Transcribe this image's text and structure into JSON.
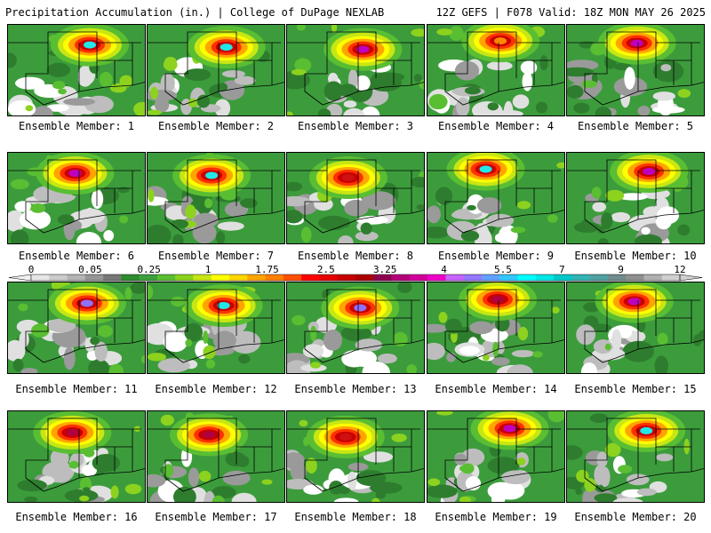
{
  "header": {
    "title_left": "Precipitation Accumulation (in.) | College of DuPage NEXLAB",
    "title_right": "12Z GEFS | F078 Valid: 18Z MON MAY 26 2025"
  },
  "panels": [
    {
      "label": "Ensemble Member: 1",
      "max_color": "#20e8e8"
    },
    {
      "label": "Ensemble Member: 2",
      "max_color": "#20e8e8"
    },
    {
      "label": "Ensemble Member: 3",
      "max_color": "#c000c0"
    },
    {
      "label": "Ensemble Member: 4",
      "max_color": "#ff8800"
    },
    {
      "label": "Ensemble Member: 5",
      "max_color": "#c000c0"
    },
    {
      "label": "Ensemble Member: 6",
      "max_color": "#c000c0"
    },
    {
      "label": "Ensemble Member: 7",
      "max_color": "#20e8e8"
    },
    {
      "label": "Ensemble Member: 8",
      "max_color": "#d01010"
    },
    {
      "label": "Ensemble Member: 9",
      "max_color": "#20e8e8"
    },
    {
      "label": "Ensemble Member: 10",
      "max_color": "#c000c0"
    },
    {
      "label": "Ensemble Member: 11",
      "max_color": "#9070ff"
    },
    {
      "label": "Ensemble Member: 12",
      "max_color": "#20e8e8"
    },
    {
      "label": "Ensemble Member: 13",
      "max_color": "#9070ff"
    },
    {
      "label": "Ensemble Member: 14",
      "max_color": "#b00040"
    },
    {
      "label": "Ensemble Member: 15",
      "max_color": "#c000c0"
    },
    {
      "label": "Ensemble Member: 16",
      "max_color": "#b00040"
    },
    {
      "label": "Ensemble Member: 17",
      "max_color": "#b00040"
    },
    {
      "label": "Ensemble Member: 18",
      "max_color": "#d01010"
    },
    {
      "label": "Ensemble Member: 19",
      "max_color": "#c000c0"
    },
    {
      "label": "Ensemble Member: 20",
      "max_color": "#20e8e8"
    }
  ],
  "colorbar": {
    "ticks": [
      "0",
      "0.05",
      "0.25",
      "1",
      "1.75",
      "2.5",
      "3.25",
      "4",
      "5.5",
      "7",
      "9",
      "12"
    ],
    "colors": [
      "#e6e6e6",
      "#cccccc",
      "#b4b4b4",
      "#969696",
      "#787878",
      "#2e8b2e",
      "#3ca03c",
      "#5abe32",
      "#8cd21e",
      "#c8e614",
      "#ffff00",
      "#ffd700",
      "#ffa500",
      "#ff7f00",
      "#ff5000",
      "#ff0000",
      "#e60000",
      "#c80000",
      "#aa0000",
      "#8c0050",
      "#b40078",
      "#d2009a",
      "#f000c8",
      "#c864ff",
      "#9678ff",
      "#64a0ff",
      "#32c8ff",
      "#00ffff",
      "#00e6e6",
      "#00c8c8",
      "#32b4b4",
      "#50a0a0",
      "#708c8c",
      "#909090",
      "#b0b0b0",
      "#d0d0d0"
    ]
  }
}
